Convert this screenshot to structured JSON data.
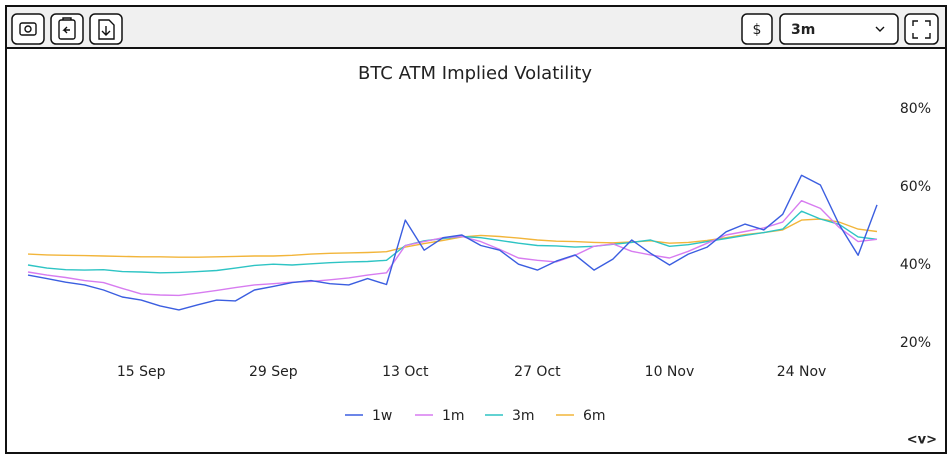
{
  "toolbar": {
    "currency": "$",
    "range": "3m",
    "nav": "<v>"
  },
  "chart_data": {
    "type": "line",
    "title": "BTC ATM Implied Volatility",
    "x": [
      "3 Sep",
      "5 Sep",
      "7 Sep",
      "9 Sep",
      "11 Sep",
      "13 Sep",
      "15 Sep",
      "17 Sep",
      "19 Sep",
      "21 Sep",
      "23 Sep",
      "25 Sep",
      "27 Sep",
      "29 Sep",
      "1 Oct",
      "3 Oct",
      "5 Oct",
      "7 Oct",
      "9 Oct",
      "11 Oct",
      "13 Oct",
      "15 Oct",
      "17 Oct",
      "19 Oct",
      "21 Oct",
      "23 Oct",
      "25 Oct",
      "27 Oct",
      "29 Oct",
      "31 Oct",
      "2 Nov",
      "4 Nov",
      "6 Nov",
      "8 Nov",
      "10 Nov",
      "12 Nov",
      "14 Nov",
      "16 Nov",
      "18 Nov",
      "20 Nov",
      "22 Nov",
      "24 Nov",
      "26 Nov",
      "28 Nov",
      "30 Nov",
      "2 Dec"
    ],
    "xticks": [
      "15 Sep",
      "29 Sep",
      "13 Oct",
      "27 Oct",
      "10 Nov",
      "24 Nov"
    ],
    "series": [
      {
        "name": "1w",
        "color": "#3b5ee0",
        "values": [
          37.4,
          36.5,
          35.6,
          34.9,
          33.6,
          31.8,
          31.0,
          29.5,
          28.5,
          29.8,
          31.0,
          30.8,
          33.6,
          34.5,
          35.5,
          36.0,
          35.2,
          34.9,
          36.5,
          35.0,
          51.5,
          43.8,
          47.0,
          47.7,
          45.0,
          43.8,
          40.2,
          38.7,
          41.0,
          42.6,
          38.7,
          41.5,
          46.4,
          43.0,
          40.0,
          42.8,
          44.6,
          48.5,
          50.5,
          49.0,
          53.0,
          63.0,
          60.5,
          50.3,
          42.5,
          55.4
        ]
      },
      {
        "name": "1m",
        "color": "#d77cf0",
        "values": [
          38.2,
          37.4,
          36.8,
          36.0,
          35.5,
          34.0,
          32.6,
          32.3,
          32.2,
          32.8,
          33.5,
          34.2,
          34.9,
          35.2,
          35.6,
          35.8,
          36.2,
          36.7,
          37.4,
          38.0,
          45.0,
          46.0,
          47.0,
          47.3,
          46.0,
          44.0,
          41.8,
          41.2,
          40.8,
          42.5,
          44.8,
          45.4,
          43.5,
          42.6,
          41.8,
          43.5,
          45.6,
          47.7,
          48.6,
          49.5,
          51.0,
          56.5,
          54.5,
          49.6,
          46.0,
          46.6
        ]
      },
      {
        "name": "3m",
        "color": "#2ec4c4",
        "values": [
          40.0,
          39.2,
          38.8,
          38.7,
          38.8,
          38.3,
          38.2,
          38.0,
          38.1,
          38.3,
          38.6,
          39.2,
          39.9,
          40.2,
          40.0,
          40.3,
          40.6,
          40.8,
          40.9,
          41.2,
          45.0,
          46.2,
          46.8,
          47.3,
          47.0,
          46.3,
          45.6,
          45.0,
          44.9,
          44.6,
          44.8,
          45.3,
          45.8,
          46.4,
          44.8,
          45.2,
          46.0,
          46.8,
          47.6,
          48.3,
          49.2,
          53.8,
          51.8,
          50.4,
          47.2,
          46.6
        ]
      },
      {
        "name": "6m",
        "color": "#f2b53a",
        "values": [
          42.8,
          42.6,
          42.5,
          42.4,
          42.3,
          42.2,
          42.1,
          42.1,
          42.0,
          42.0,
          42.1,
          42.2,
          42.3,
          42.3,
          42.5,
          42.8,
          43.0,
          43.1,
          43.2,
          43.4,
          44.6,
          45.5,
          46.3,
          47.2,
          47.6,
          47.3,
          46.9,
          46.4,
          46.1,
          46.0,
          45.8,
          45.7,
          45.9,
          46.2,
          45.6,
          45.8,
          46.3,
          47.0,
          47.8,
          48.3,
          49.0,
          51.5,
          51.8,
          51.0,
          49.2,
          48.6
        ]
      }
    ],
    "ylim": [
      15,
      85
    ],
    "yticks": [
      {
        "value": 20,
        "label": "20%"
      },
      {
        "value": 40,
        "label": "40%"
      },
      {
        "value": 60,
        "label": "60%"
      },
      {
        "value": 80,
        "label": "80%"
      }
    ],
    "grid": false
  }
}
